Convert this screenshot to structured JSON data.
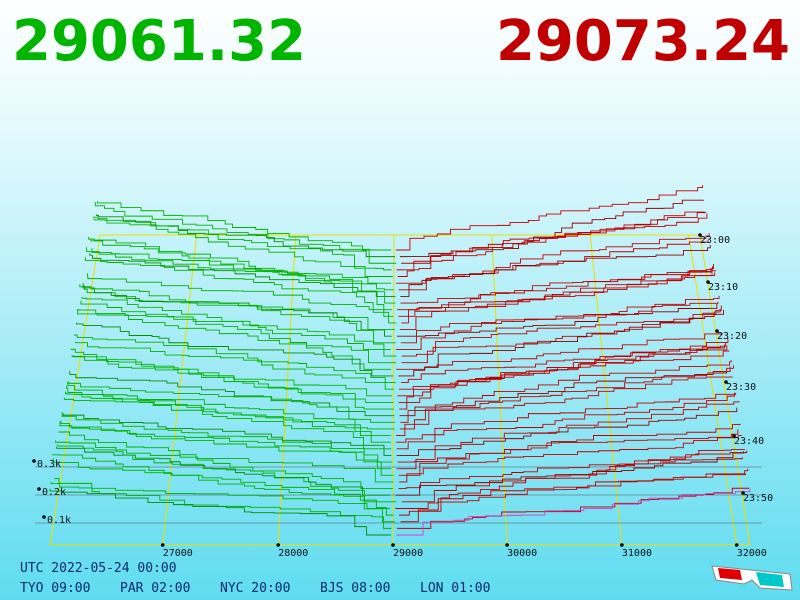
{
  "header": {
    "bid": "29061.32",
    "ask": "29073.24"
  },
  "price_axis": {
    "labels": [
      "27000",
      "28000",
      "29000",
      "30000",
      "31000",
      "32000"
    ]
  },
  "volume_axis": {
    "labels": [
      "0.3k",
      "0.2k",
      "0.1k"
    ]
  },
  "time_axis": {
    "labels": [
      "23:00",
      "23:10",
      "23:20",
      "23:30",
      "23:40",
      "23:50"
    ]
  },
  "footer": {
    "utc": "UTC 2022-05-24 00:00",
    "clocks": [
      "TYO 09:00",
      "PAR 02:00",
      "NYC 20:00",
      "BJS 08:00",
      "LON 01:00"
    ]
  }
}
